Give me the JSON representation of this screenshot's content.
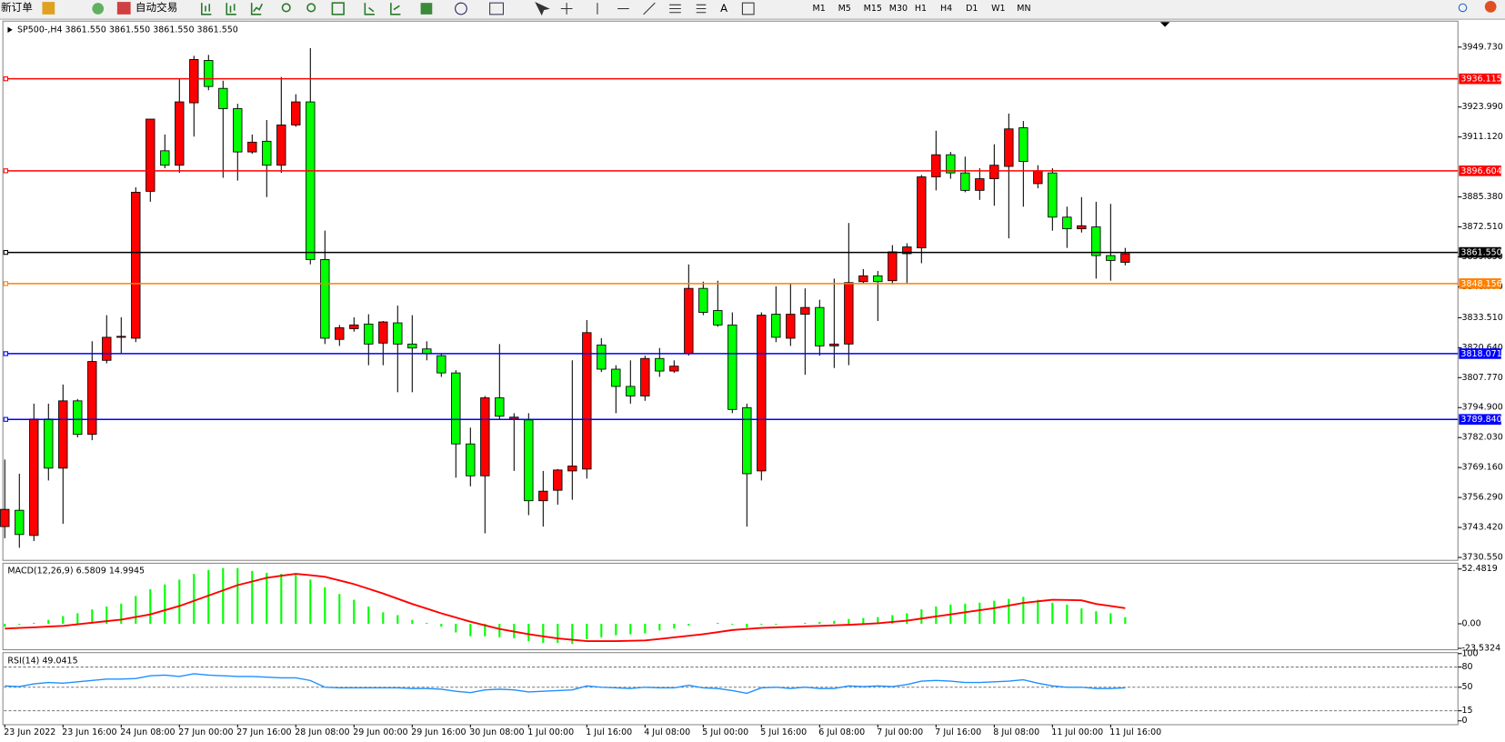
{
  "toolbar": {
    "new_order": "新订单",
    "auto_trading": "自动交易",
    "timeframes": [
      "M1",
      "M5",
      "M15",
      "M30",
      "H1",
      "H4",
      "D1",
      "W1",
      "MN"
    ]
  },
  "chart_data": [
    {
      "type": "candlestick",
      "title": "SP500-,H4  3861.550 3861.550 3861.550 3861.550",
      "categories": [
        "23 Jun 2022",
        null,
        null,
        null,
        "23 Jun 16:00",
        null,
        null,
        null,
        "24 Jun 08:00",
        null,
        null,
        null,
        "27 Jun 00:00",
        null,
        null,
        null,
        "27 Jun 16:00",
        null,
        null,
        null,
        "28 Jun 08:00",
        null,
        null,
        null,
        "29 Jun 00:00",
        null,
        null,
        null,
        "29 Jun 16:00",
        null,
        null,
        null,
        "30 Jun 08:00",
        null,
        null,
        null,
        "1 Jul 00:00",
        null,
        null,
        null,
        "1 Jul 16:00",
        null,
        null,
        null,
        "4 Jul 08:00",
        null,
        null,
        null,
        "5 Jul 00:00",
        null,
        null,
        null,
        "5 Jul 16:00",
        null,
        null,
        null,
        "6 Jul 08:00",
        null,
        null,
        null,
        "7 Jul 00:00",
        null,
        null,
        null,
        "7 Jul 16:00",
        null,
        null,
        null,
        "8 Jul 08:00",
        null,
        null,
        null,
        "11 Jul 00:00",
        null,
        null,
        null,
        "11 Jul 16:00",
        null
      ],
      "open": [
        3751.2,
        3740.4,
        3790.0,
        3768.9,
        3797.8,
        3783.4,
        3814.7,
        3825.1,
        3825.5,
        3887.4,
        3918.8,
        3899.0,
        3926.2,
        3944.4,
        3932.8,
        3923.3,
        3904.7,
        3908.9,
        3899.0,
        3916.3,
        3926.2,
        3858.5,
        3824.7,
        3829.2,
        3830.4,
        3822.2,
        3831.7,
        3822.2,
        3820.5,
        3818.0,
        3809.8,
        3779.3,
        3765.6,
        3799.1,
        3791.2,
        3790.8,
        3754.9,
        3759.0,
        3768.1,
        3769.8,
        3827.1,
        3811.4,
        3804.0,
        3799.9,
        3816.0,
        3810.6,
        3812.7,
        3846.1,
        3835.8,
        3830.4,
        3794.1,
        3766.5,
        3834.6,
        3825.1,
        3835.0,
        3837.9,
        3821.4,
        3822.2,
        3848.6,
        3851.5,
        3849.0,
        3861.8,
        3863.9,
        3894.0,
        3903.5,
        3895.7,
        3888.2,
        3893.2,
        3899.0,
        3914.6,
        3900.6,
        3896.5,
        3876.7,
        3871.7,
        3873.0,
        3860.2,
        3858.1,
        3861.0
      ],
      "high": [
        3772.6,
        3766.5,
        3796.6,
        3796.6,
        3804.8,
        3798.6,
        3823.4,
        3834.6,
        3833.7,
        3889.5,
        3918.8,
        3912.2,
        3936.1,
        3946.0,
        3946.4,
        3935.3,
        3925.4,
        3912.2,
        3918.4,
        3936.9,
        3929.5,
        3949.3,
        3870.9,
        3830.4,
        3833.7,
        3835.0,
        3832.1,
        3838.7,
        3834.6,
        3823.4,
        3818.0,
        3811.0,
        3786.3,
        3799.9,
        3822.2,
        3792.5,
        3792.5,
        3767.7,
        3768.5,
        3815.2,
        3832.5,
        3824.7,
        3813.1,
        3815.2,
        3817.2,
        3820.5,
        3815.2,
        3856.4,
        3849.0,
        3849.4,
        3835.8,
        3796.6,
        3835.8,
        3847.0,
        3848.2,
        3846.1,
        3841.2,
        3850.3,
        3874.2,
        3854.4,
        3853.6,
        3864.7,
        3865.5,
        3894.8,
        3913.8,
        3904.7,
        3902.7,
        3897.7,
        3908.0,
        3921.2,
        3918.0,
        3899.0,
        3897.7,
        3881.2,
        3885.3,
        3883.3,
        3882.4,
        3863.5
      ],
      "low": [
        3738.8,
        3734.7,
        3737.6,
        3763.6,
        3745.0,
        3782.1,
        3780.9,
        3813.9,
        3818.0,
        3823.0,
        3883.3,
        3897.7,
        3895.7,
        3911.3,
        3931.2,
        3893.6,
        3892.4,
        3903.9,
        3885.3,
        3895.7,
        3915.5,
        3856.4,
        3822.2,
        3821.4,
        3827.5,
        3813.1,
        3813.1,
        3801.5,
        3801.5,
        3815.2,
        3808.1,
        3764.8,
        3761.1,
        3740.9,
        3789.6,
        3767.7,
        3748.7,
        3743.8,
        3753.2,
        3755.3,
        3764.4,
        3810.2,
        3792.5,
        3796.6,
        3797.8,
        3808.1,
        3809.8,
        3817.2,
        3834.6,
        3829.6,
        3792.5,
        3743.8,
        3763.6,
        3823.0,
        3821.4,
        3809.0,
        3817.2,
        3811.9,
        3813.1,
        3848.2,
        3832.1,
        3847.8,
        3848.2,
        3856.9,
        3888.2,
        3893.2,
        3887.4,
        3884.1,
        3881.6,
        3867.6,
        3881.2,
        3889.1,
        3870.9,
        3863.5,
        3870.1,
        3850.3,
        3849.4,
        3856.0
      ],
      "close": [
        3743.8,
        3750.8,
        3740.0,
        3790.0,
        3768.9,
        3797.8,
        3783.4,
        3815.2,
        3825.1,
        3824.7,
        3887.8,
        3905.2,
        3899.0,
        3925.8,
        3944.0,
        3932.0,
        3923.3,
        3904.7,
        3909.3,
        3899.0,
        3916.3,
        3926.2,
        3858.5,
        3824.2,
        3828.8,
        3830.8,
        3822.6,
        3831.3,
        3822.2,
        3820.1,
        3817.2,
        3809.8,
        3779.3,
        3765.6,
        3799.1,
        3790.0,
        3789.6,
        3754.9,
        3759.4,
        3767.7,
        3768.5,
        3821.8,
        3811.4,
        3804.0,
        3799.9,
        3816.0,
        3810.6,
        3818.0,
        3846.1,
        3836.6,
        3830.4,
        3794.9,
        3767.7,
        3835.0,
        3824.7,
        3835.0,
        3837.9,
        3821.4,
        3822.2,
        3849.0,
        3851.5,
        3849.4,
        3861.0,
        3863.5,
        3894.0,
        3903.5,
        3895.7,
        3888.2,
        3893.2,
        3898.5,
        3915.1,
        3891.1,
        3895.7,
        3876.7,
        3871.7,
        3872.5,
        3860.2,
        3857.3
      ],
      "up_color": "#00ff00",
      "down_color": "#ff0000",
      "ylim": [
        3729.3,
        3960.88
      ],
      "yticks": [
        {
          "value": 3949.73,
          "label": "3949.730"
        },
        {
          "value": 3923.99,
          "label": "3923.990"
        },
        {
          "value": 3911.12,
          "label": "3911.120"
        },
        {
          "value": 3885.38,
          "label": "3885.380"
        },
        {
          "value": 3872.51,
          "label": "3872.510"
        },
        {
          "value": 3859.65,
          "label": "3859.650"
        },
        {
          "value": 3846.77,
          "label": "3846.770"
        },
        {
          "value": 3833.51,
          "label": "3833.510"
        },
        {
          "value": 3820.64,
          "label": "3820.640"
        },
        {
          "value": 3807.77,
          "label": "3807.770"
        },
        {
          "value": 3794.9,
          "label": "3794.900"
        },
        {
          "value": 3782.03,
          "label": "3782.030"
        },
        {
          "value": 3769.16,
          "label": "3769.160"
        },
        {
          "value": 3756.29,
          "label": "3756.290"
        },
        {
          "value": 3743.42,
          "label": "3743.420"
        },
        {
          "value": 3730.55,
          "label": "3730.550"
        }
      ],
      "hlines": [
        {
          "value": 3936.115,
          "label": "3936.115",
          "color": "#ff0000"
        },
        {
          "value": 3896.604,
          "label": "3896.604",
          "color": "#ff0000"
        },
        {
          "value": 3861.55,
          "label": "3861.550",
          "color": "#000000"
        },
        {
          "value": 3848.156,
          "label": "3848.156",
          "color": "#ff8000"
        },
        {
          "value": 3818.071,
          "label": "3818.071",
          "color": "#0000ff"
        },
        {
          "value": 3789.84,
          "label": "3789.840",
          "color": "#0000ff"
        }
      ]
    },
    {
      "type": "macd",
      "title": "MACD(12,26,9) 6.5809 14.9945",
      "series": [
        {
          "color": "#00ff00",
          "values": [
            -2.8,
            -0.9,
            0.9,
            3.7,
            7.4,
            10.1,
            13.8,
            16.6,
            19.3,
            26.7,
            33.1,
            37.7,
            42.3,
            47.8,
            51.5,
            53.4,
            53.4,
            50.6,
            48.8,
            47.8,
            47.8,
            42.3,
            35.0,
            28.5,
            23.0,
            16.6,
            11.0,
            8.3,
            3.7,
            0.9,
            -2.8,
            -8.3,
            -12.0,
            -12.0,
            -12.9,
            -13.8,
            -16.6,
            -18.4,
            -18.4,
            -19.3,
            -14.7,
            -12.9,
            -11.0,
            -10.1,
            -9.2,
            -6.4,
            -4.6,
            -1.8,
            0,
            0.9,
            -0.9,
            -3.7,
            -0.9,
            -0.9,
            0,
            0.9,
            1.8,
            2.8,
            4.6,
            5.5,
            6.4,
            8.3,
            10.1,
            13.8,
            16.6,
            18.4,
            19.3,
            20.2,
            22.1,
            23.9,
            25.8,
            23.0,
            20.2,
            18.4,
            14.7,
            12.0,
            10.1,
            6.4
          ]
        },
        {
          "color": "#ff0000",
          "values": [
            -4.6,
            -4,
            -3.4,
            -2.7,
            -2,
            -0.5,
            1,
            2.5,
            4,
            6.5,
            9,
            13,
            17,
            22,
            27,
            32,
            37,
            40.5,
            44,
            46,
            47.8,
            46.5,
            45,
            41.5,
            38,
            33.5,
            29,
            24,
            19,
            14.5,
            10,
            6,
            2,
            -1.5,
            -5,
            -7.5,
            -10,
            -12,
            -14,
            -15.3,
            -16.6,
            -16.6,
            -16.6,
            -16.3,
            -16,
            -14.5,
            -13,
            -11.5,
            -10,
            -8,
            -6,
            -5,
            -4,
            -3.5,
            -3,
            -2.5,
            -2,
            -1.5,
            -1,
            -0.3,
            0.5,
            1.8,
            3,
            5,
            7,
            9,
            11,
            13,
            15,
            17.5,
            20,
            21.5,
            23,
            22.8,
            22.5,
            19,
            17,
            15.0
          ]
        }
      ],
      "ylim": [
        -23.94,
        57.08
      ],
      "yticks": [
        52.4819,
        {
          "value": 0,
          "label": "0.00"
        },
        -23.5324
      ]
    },
    {
      "type": "line",
      "title": "RSI(14) 49.0415",
      "color": "#1e90ff",
      "values": [
        52,
        51,
        55,
        57,
        56,
        58,
        60,
        62,
        62,
        63,
        67,
        68,
        66,
        70,
        68,
        67,
        66,
        66,
        65,
        64,
        64,
        60,
        50,
        49,
        49,
        49,
        49,
        49,
        48,
        48,
        47,
        44,
        42,
        46,
        47,
        46,
        43,
        44,
        45,
        46,
        52,
        50,
        49,
        48,
        50,
        49,
        49,
        53,
        49,
        48,
        45,
        41,
        49,
        50,
        48,
        50,
        48,
        48,
        52,
        51,
        52,
        51,
        54,
        59,
        60,
        59,
        57,
        57,
        58,
        59,
        61,
        56,
        52,
        50,
        50,
        48,
        48,
        49
      ],
      "ylim": [
        0,
        100
      ],
      "yticks": [
        100,
        80,
        50,
        15,
        0
      ],
      "grid": "dashed"
    }
  ]
}
